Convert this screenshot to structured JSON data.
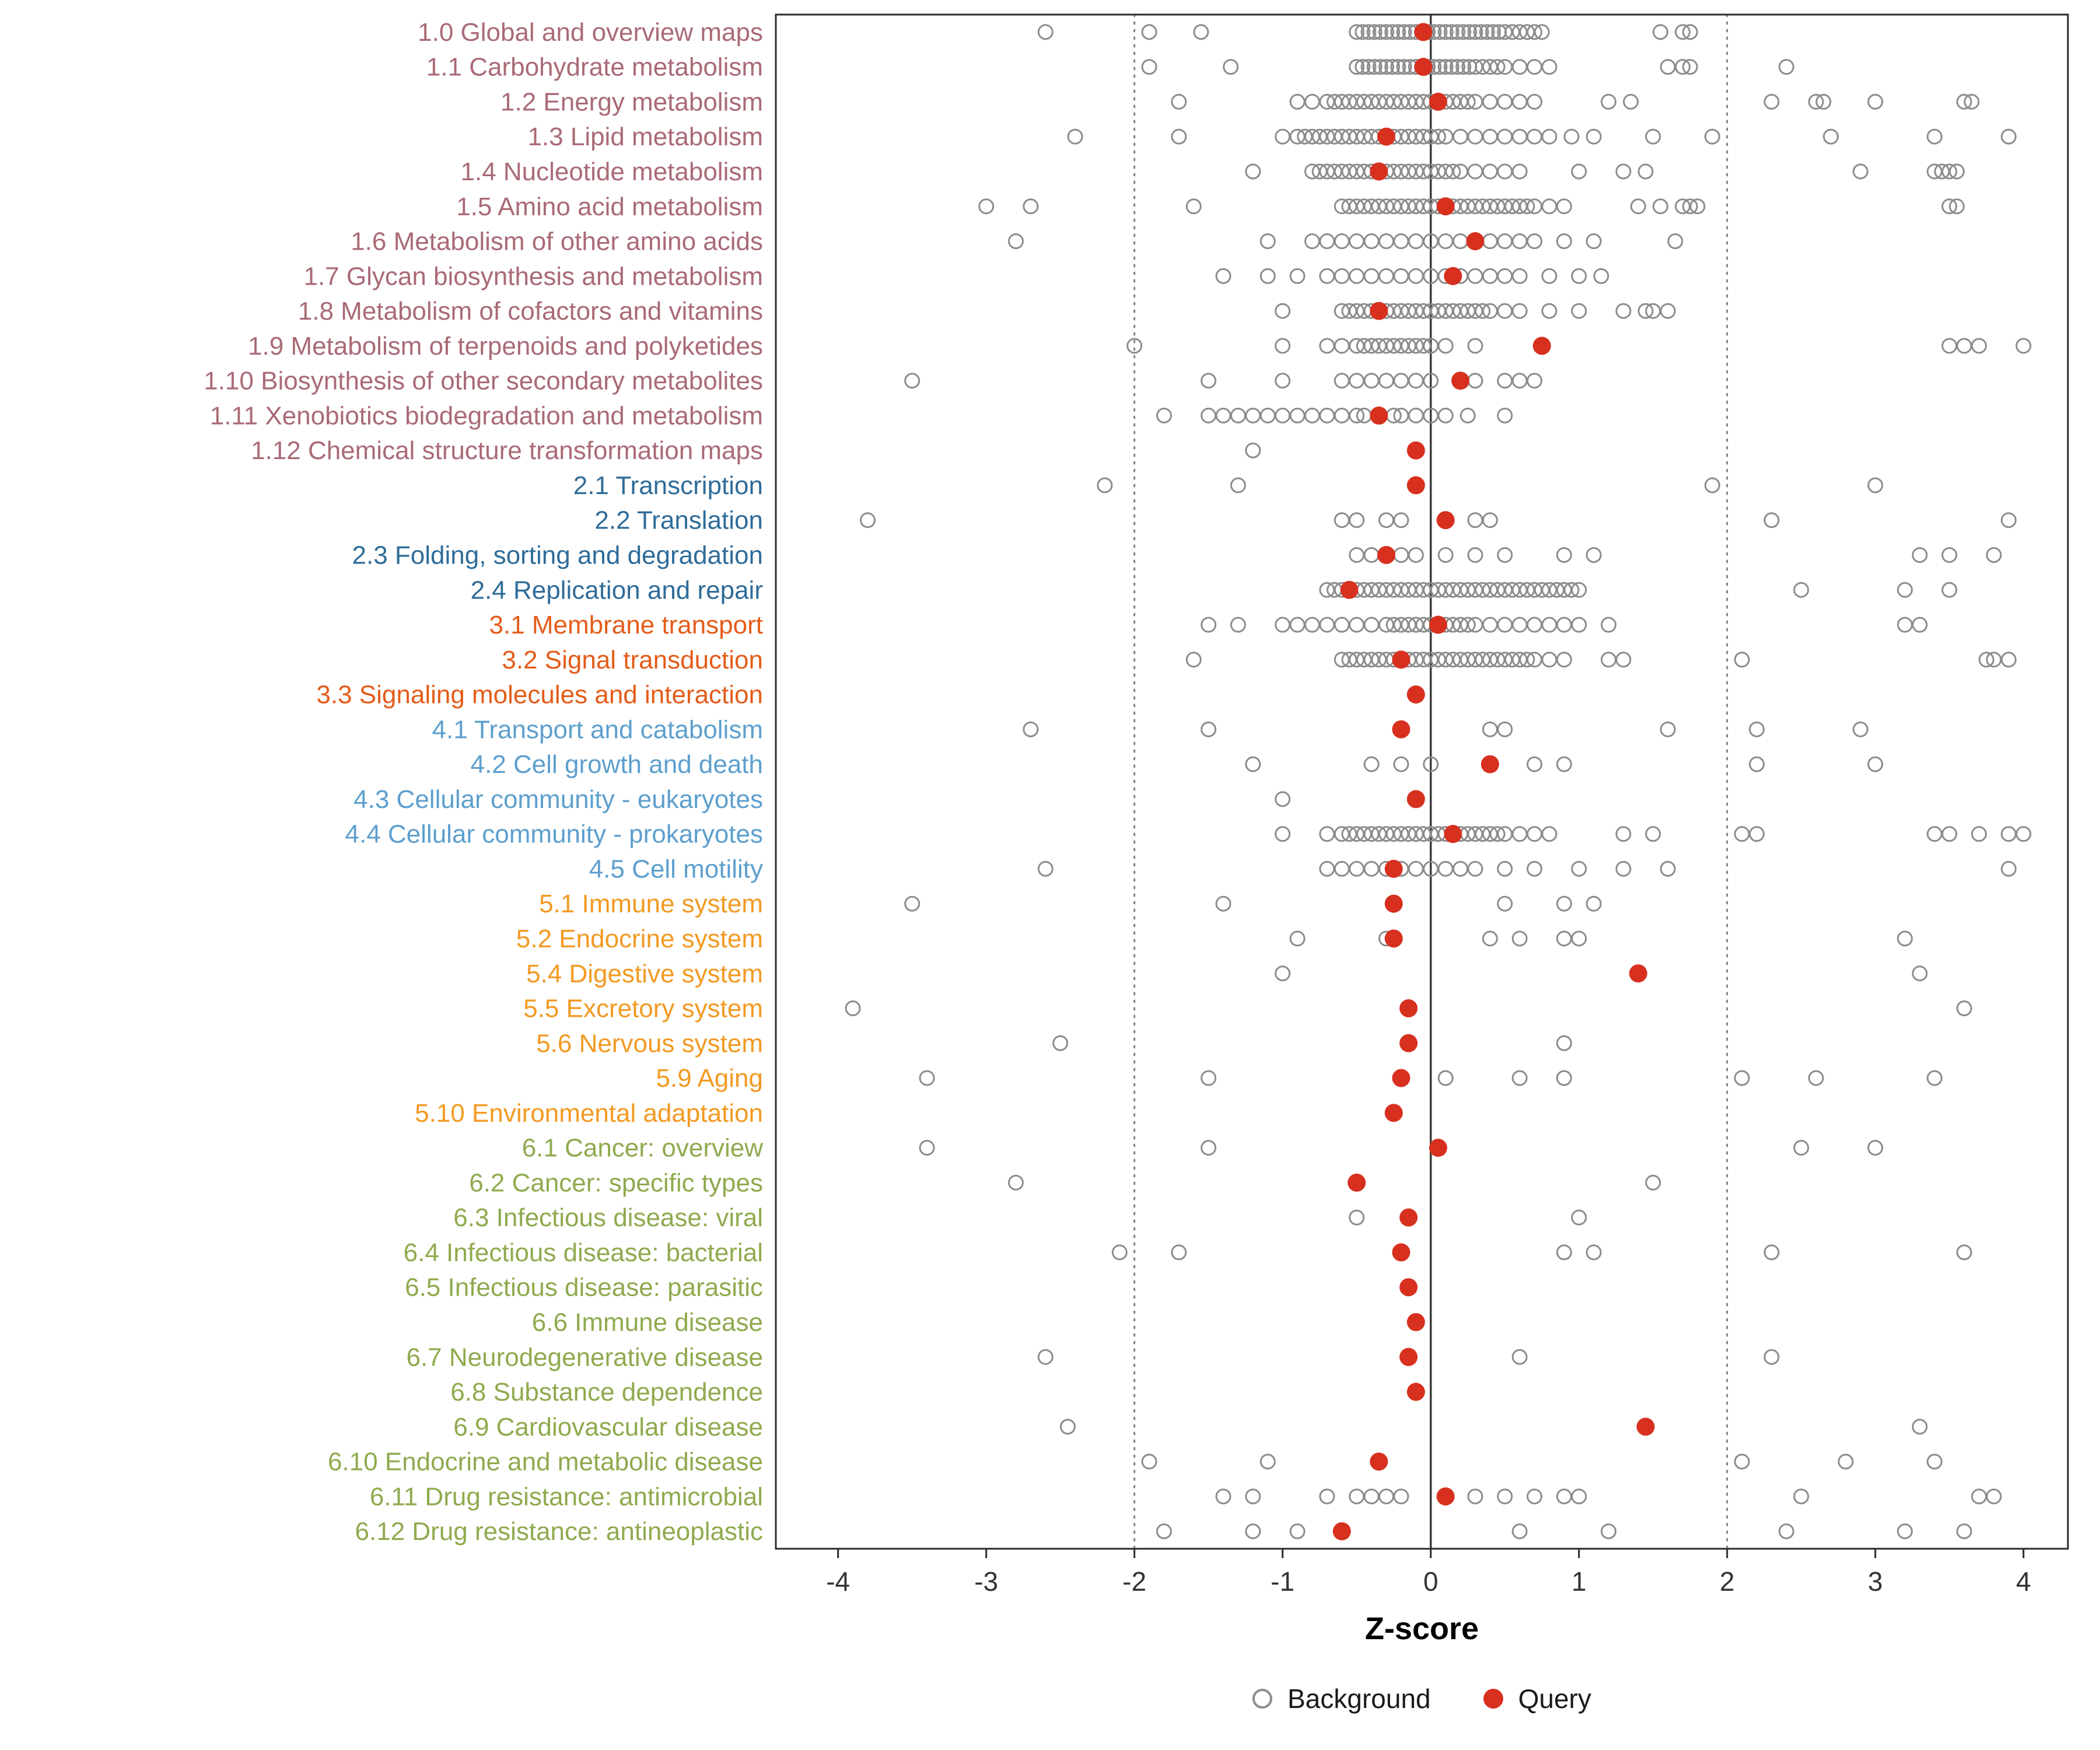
{
  "colors": {
    "query": "#D7301F",
    "background_stroke": "#8C8C8C",
    "zero_line": "#3C3C3C",
    "ref_line": "#808080",
    "panel_border": "#2B2B2B",
    "tick_text": "#333333",
    "axis_title": "#000000",
    "groups": {
      "metabolism": "#A96A76",
      "genetic_information_processing": "#2F6C99",
      "environmental_information_processing": "#E45C1A",
      "cellular_processes": "#5D9FCE",
      "organismal_systems": "#F29A23",
      "human_diseases": "#8FAA4E"
    }
  },
  "chart_data": {
    "type": "scatter",
    "title": "",
    "xlabel": "Z-score",
    "ylabel": "",
    "xlim": [
      -4.42,
      4.3
    ],
    "xticks": [
      -4,
      -3,
      -2,
      -1,
      0,
      1,
      2,
      3,
      4
    ],
    "grid": false,
    "ref_lines": {
      "solid": [
        0
      ],
      "dotted": [
        -2,
        2
      ]
    },
    "legend": {
      "background_label": "Background",
      "query_label": "Query",
      "position": "bottom"
    },
    "series_meaning": "Each row shows gray open 'Background' z-scores and one red filled 'Query' z-score per KEGG pathway category",
    "rows": [
      {
        "label": "1.0 Global and overview maps",
        "group": "metabolism",
        "query": -0.05,
        "background": [
          -2.6,
          -1.9,
          -1.55,
          -0.5,
          -0.46,
          -0.42,
          -0.38,
          -0.34,
          -0.3,
          -0.26,
          -0.22,
          -0.18,
          -0.14,
          -0.1,
          -0.06,
          -0.02,
          0.02,
          0.06,
          0.1,
          0.14,
          0.18,
          0.22,
          0.26,
          0.3,
          0.34,
          0.38,
          0.42,
          0.46,
          0.5,
          0.55,
          0.6,
          0.65,
          0.7,
          0.75,
          1.55,
          1.7,
          1.75
        ]
      },
      {
        "label": "1.1 Carbohydrate metabolism",
        "group": "metabolism",
        "query": -0.05,
        "background": [
          -1.9,
          -1.35,
          -0.5,
          -0.46,
          -0.42,
          -0.38,
          -0.34,
          -0.3,
          -0.26,
          -0.22,
          -0.18,
          -0.14,
          -0.1,
          -0.06,
          -0.02,
          0.02,
          0.06,
          0.1,
          0.14,
          0.18,
          0.22,
          0.26,
          0.3,
          0.35,
          0.4,
          0.45,
          0.5,
          0.6,
          0.7,
          0.8,
          1.6,
          1.7,
          1.75,
          2.4
        ]
      },
      {
        "label": "1.2 Energy metabolism",
        "group": "metabolism",
        "query": 0.05,
        "background": [
          -1.7,
          -0.9,
          -0.8,
          -0.7,
          -0.65,
          -0.6,
          -0.55,
          -0.5,
          -0.45,
          -0.4,
          -0.35,
          -0.3,
          -0.25,
          -0.2,
          -0.15,
          -0.1,
          -0.05,
          0,
          0.05,
          0.1,
          0.15,
          0.2,
          0.25,
          0.3,
          0.4,
          0.5,
          0.6,
          0.7,
          1.2,
          1.35,
          2.3,
          2.6,
          2.65,
          3.0,
          3.6,
          3.65
        ]
      },
      {
        "label": "1.3 Lipid metabolism",
        "group": "metabolism",
        "query": -0.3,
        "background": [
          -2.4,
          -1.7,
          -1.0,
          -0.9,
          -0.85,
          -0.8,
          -0.75,
          -0.7,
          -0.65,
          -0.6,
          -0.55,
          -0.5,
          -0.45,
          -0.4,
          -0.35,
          -0.25,
          -0.2,
          -0.15,
          -0.1,
          -0.05,
          0,
          0.05,
          0.1,
          0.2,
          0.3,
          0.4,
          0.5,
          0.6,
          0.7,
          0.8,
          0.95,
          1.1,
          1.5,
          1.9,
          2.7,
          3.4,
          3.9
        ]
      },
      {
        "label": "1.4 Nucleotide metabolism",
        "group": "metabolism",
        "query": -0.35,
        "background": [
          -1.2,
          -0.8,
          -0.75,
          -0.7,
          -0.65,
          -0.6,
          -0.55,
          -0.5,
          -0.45,
          -0.4,
          -0.3,
          -0.25,
          -0.2,
          -0.15,
          -0.1,
          -0.05,
          0,
          0.05,
          0.1,
          0.15,
          0.2,
          0.3,
          0.4,
          0.5,
          0.6,
          1.0,
          1.3,
          1.45,
          2.9,
          3.4,
          3.45,
          3.5,
          3.55
        ]
      },
      {
        "label": "1.5 Amino acid metabolism",
        "group": "metabolism",
        "query": 0.1,
        "background": [
          -3.0,
          -2.7,
          -1.6,
          -0.6,
          -0.55,
          -0.5,
          -0.45,
          -0.4,
          -0.35,
          -0.3,
          -0.25,
          -0.2,
          -0.15,
          -0.1,
          -0.05,
          0,
          0.05,
          0.15,
          0.2,
          0.25,
          0.3,
          0.35,
          0.4,
          0.45,
          0.5,
          0.55,
          0.6,
          0.65,
          0.7,
          0.8,
          0.9,
          1.4,
          1.55,
          1.7,
          1.75,
          1.8,
          3.5,
          3.55
        ]
      },
      {
        "label": "1.6 Metabolism of other amino acids",
        "group": "metabolism",
        "query": 0.3,
        "background": [
          -2.8,
          -1.1,
          -0.8,
          -0.7,
          -0.6,
          -0.5,
          -0.4,
          -0.3,
          -0.2,
          -0.1,
          0,
          0.1,
          0.2,
          0.4,
          0.5,
          0.6,
          0.7,
          0.9,
          1.1,
          1.65
        ]
      },
      {
        "label": "1.7 Glycan biosynthesis and metabolism",
        "group": "metabolism",
        "query": 0.15,
        "background": [
          -1.4,
          -1.1,
          -0.9,
          -0.7,
          -0.6,
          -0.5,
          -0.4,
          -0.3,
          -0.2,
          -0.1,
          0,
          0.1,
          0.2,
          0.3,
          0.4,
          0.5,
          0.6,
          0.8,
          1.0,
          1.15
        ]
      },
      {
        "label": "1.8 Metabolism of cofactors and vitamins",
        "group": "metabolism",
        "query": -0.35,
        "background": [
          -1.0,
          -0.6,
          -0.55,
          -0.5,
          -0.45,
          -0.4,
          -0.3,
          -0.25,
          -0.2,
          -0.15,
          -0.1,
          -0.05,
          0,
          0.05,
          0.1,
          0.15,
          0.2,
          0.25,
          0.3,
          0.35,
          0.4,
          0.5,
          0.6,
          0.8,
          1.0,
          1.3,
          1.45,
          1.5,
          1.6
        ]
      },
      {
        "label": "1.9 Metabolism of terpenoids and polyketides",
        "group": "metabolism",
        "query": 0.75,
        "background": [
          -2.0,
          -1.0,
          -0.7,
          -0.6,
          -0.5,
          -0.45,
          -0.4,
          -0.35,
          -0.3,
          -0.25,
          -0.2,
          -0.15,
          -0.1,
          -0.05,
          0,
          0.1,
          0.3,
          3.5,
          3.6,
          3.7,
          4.0
        ]
      },
      {
        "label": "1.10 Biosynthesis of other secondary metabolites",
        "group": "metabolism",
        "query": 0.2,
        "background": [
          -3.5,
          -1.5,
          -1.0,
          -0.6,
          -0.5,
          -0.4,
          -0.3,
          -0.2,
          -0.1,
          0,
          0.3,
          0.5,
          0.6,
          0.7
        ]
      },
      {
        "label": "1.11 Xenobiotics biodegradation and metabolism",
        "group": "metabolism",
        "query": -0.35,
        "background": [
          -1.8,
          -1.5,
          -1.4,
          -1.3,
          -1.2,
          -1.1,
          -1.0,
          -0.9,
          -0.8,
          -0.7,
          -0.6,
          -0.5,
          -0.45,
          -0.25,
          -0.2,
          -0.1,
          0,
          0.1,
          0.25,
          0.5
        ]
      },
      {
        "label": "1.12 Chemical structure transformation maps",
        "group": "metabolism",
        "query": -0.1,
        "background": [
          -1.2
        ]
      },
      {
        "label": "2.1 Transcription",
        "group": "genetic_information_processing",
        "query": -0.1,
        "background": [
          -2.2,
          -1.3,
          1.9,
          3.0
        ]
      },
      {
        "label": "2.2 Translation",
        "group": "genetic_information_processing",
        "query": 0.1,
        "background": [
          -3.8,
          -0.6,
          -0.5,
          -0.3,
          -0.2,
          0.3,
          0.4,
          2.3,
          3.9
        ]
      },
      {
        "label": "2.3 Folding, sorting and degradation",
        "group": "genetic_information_processing",
        "query": -0.3,
        "background": [
          -0.5,
          -0.4,
          -0.2,
          -0.1,
          0.1,
          0.3,
          0.5,
          0.9,
          1.1,
          3.3,
          3.5,
          3.8
        ]
      },
      {
        "label": "2.4 Replication and repair",
        "group": "genetic_information_processing",
        "query": -0.55,
        "background": [
          -0.7,
          -0.65,
          -0.6,
          -0.5,
          -0.45,
          -0.4,
          -0.35,
          -0.3,
          -0.25,
          -0.2,
          -0.15,
          -0.1,
          -0.05,
          0,
          0.05,
          0.1,
          0.15,
          0.2,
          0.25,
          0.3,
          0.35,
          0.4,
          0.45,
          0.5,
          0.55,
          0.6,
          0.65,
          0.7,
          0.75,
          0.8,
          0.85,
          0.9,
          0.95,
          1.0,
          2.5,
          3.2,
          3.5
        ]
      },
      {
        "label": "3.1 Membrane transport",
        "group": "environmental_information_processing",
        "query": 0.05,
        "background": [
          -1.5,
          -1.3,
          -1.0,
          -0.9,
          -0.8,
          -0.7,
          -0.6,
          -0.5,
          -0.4,
          -0.3,
          -0.25,
          -0.2,
          -0.15,
          -0.1,
          -0.05,
          0,
          0.1,
          0.15,
          0.2,
          0.25,
          0.3,
          0.4,
          0.5,
          0.6,
          0.7,
          0.8,
          0.9,
          1.0,
          1.2,
          3.2,
          3.3
        ]
      },
      {
        "label": "3.2 Signal transduction",
        "group": "environmental_information_processing",
        "query": -0.2,
        "background": [
          -1.6,
          -0.6,
          -0.55,
          -0.5,
          -0.45,
          -0.4,
          -0.35,
          -0.3,
          -0.25,
          -0.15,
          -0.1,
          -0.05,
          0,
          0.05,
          0.1,
          0.15,
          0.2,
          0.25,
          0.3,
          0.35,
          0.4,
          0.45,
          0.5,
          0.55,
          0.6,
          0.65,
          0.7,
          0.8,
          0.9,
          1.2,
          1.3,
          2.1,
          3.75,
          3.8,
          3.9
        ]
      },
      {
        "label": "3.3 Signaling molecules and interaction",
        "group": "environmental_information_processing",
        "query": -0.1,
        "background": []
      },
      {
        "label": "4.1 Transport and catabolism",
        "group": "cellular_processes",
        "query": -0.2,
        "background": [
          -2.7,
          -1.5,
          0.4,
          0.5,
          1.6,
          2.2,
          2.9
        ]
      },
      {
        "label": "4.2 Cell growth and death",
        "group": "cellular_processes",
        "query": 0.4,
        "background": [
          -1.2,
          -0.4,
          -0.2,
          0,
          0.7,
          0.9,
          2.2,
          3.0
        ]
      },
      {
        "label": "4.3 Cellular community - eukaryotes",
        "group": "cellular_processes",
        "query": -0.1,
        "background": [
          -1.0
        ]
      },
      {
        "label": "4.4 Cellular community - prokaryotes",
        "group": "cellular_processes",
        "query": 0.15,
        "background": [
          -1.0,
          -0.7,
          -0.6,
          -0.55,
          -0.5,
          -0.45,
          -0.4,
          -0.35,
          -0.3,
          -0.25,
          -0.2,
          -0.15,
          -0.1,
          -0.05,
          0,
          0.05,
          0.1,
          0.2,
          0.25,
          0.3,
          0.35,
          0.4,
          0.45,
          0.5,
          0.6,
          0.7,
          0.8,
          1.3,
          1.5,
          2.1,
          2.2,
          3.4,
          3.5,
          3.7,
          3.9,
          4.0
        ]
      },
      {
        "label": "4.5 Cell motility",
        "group": "cellular_processes",
        "query": -0.25,
        "background": [
          -2.6,
          -0.7,
          -0.6,
          -0.5,
          -0.4,
          -0.3,
          -0.2,
          -0.1,
          0,
          0.1,
          0.2,
          0.3,
          0.5,
          0.7,
          1.0,
          1.3,
          1.6,
          3.9
        ]
      },
      {
        "label": "5.1 Immune system",
        "group": "organismal_systems",
        "query": -0.25,
        "background": [
          -3.5,
          -1.4,
          0.5,
          0.9,
          1.1
        ]
      },
      {
        "label": "5.2 Endocrine system",
        "group": "organismal_systems",
        "query": -0.25,
        "background": [
          -0.9,
          -0.3,
          0.4,
          0.6,
          0.9,
          1.0,
          3.2
        ]
      },
      {
        "label": "5.4 Digestive system",
        "group": "organismal_systems",
        "query": 1.4,
        "background": [
          -1.0,
          3.3
        ]
      },
      {
        "label": "5.5 Excretory system",
        "group": "organismal_systems",
        "query": -0.15,
        "background": [
          -3.9,
          3.6
        ]
      },
      {
        "label": "5.6 Nervous system",
        "group": "organismal_systems",
        "query": -0.15,
        "background": [
          -2.5,
          0.9
        ]
      },
      {
        "label": "5.9 Aging",
        "group": "organismal_systems",
        "query": -0.2,
        "background": [
          -3.4,
          -1.5,
          -0.2,
          0.1,
          0.6,
          0.9,
          2.1,
          2.6,
          3.4
        ]
      },
      {
        "label": "5.10 Environmental adaptation",
        "group": "organismal_systems",
        "query": -0.25,
        "background": []
      },
      {
        "label": "6.1 Cancer: overview",
        "group": "human_diseases",
        "query": 0.05,
        "background": [
          -3.4,
          -1.5,
          2.5,
          3.0
        ]
      },
      {
        "label": "6.2 Cancer: specific types",
        "group": "human_diseases",
        "query": -0.5,
        "background": [
          -2.8,
          1.5
        ]
      },
      {
        "label": "6.3 Infectious disease: viral",
        "group": "human_diseases",
        "query": -0.15,
        "background": [
          -0.5,
          1.0
        ]
      },
      {
        "label": "6.4 Infectious disease: bacterial",
        "group": "human_diseases",
        "query": -0.2,
        "background": [
          -2.1,
          -1.7,
          0.9,
          1.1,
          2.3,
          3.6
        ]
      },
      {
        "label": "6.5 Infectious disease: parasitic",
        "group": "human_diseases",
        "query": -0.15,
        "background": []
      },
      {
        "label": "6.6 Immune disease",
        "group": "human_diseases",
        "query": -0.1,
        "background": []
      },
      {
        "label": "6.7 Neurodegenerative disease",
        "group": "human_diseases",
        "query": -0.15,
        "background": [
          -2.6,
          0.6,
          2.3
        ]
      },
      {
        "label": "6.8 Substance dependence",
        "group": "human_diseases",
        "query": -0.1,
        "background": []
      },
      {
        "label": "6.9 Cardiovascular disease",
        "group": "human_diseases",
        "query": 1.45,
        "background": [
          -2.45,
          3.3
        ]
      },
      {
        "label": "6.10 Endocrine and metabolic disease",
        "group": "human_diseases",
        "query": -0.35,
        "background": [
          -1.9,
          -1.1,
          2.1,
          2.8,
          3.4
        ]
      },
      {
        "label": "6.11 Drug resistance: antimicrobial",
        "group": "human_diseases",
        "query": 0.1,
        "background": [
          -1.4,
          -1.2,
          -0.7,
          -0.5,
          -0.4,
          -0.3,
          -0.2,
          0.3,
          0.5,
          0.7,
          0.9,
          1.0,
          2.5,
          3.7,
          3.8
        ]
      },
      {
        "label": "6.12 Drug resistance: antineoplastic",
        "group": "human_diseases",
        "query": -0.6,
        "background": [
          -1.8,
          -1.2,
          -0.9,
          0.6,
          1.2,
          2.4,
          3.2,
          3.6
        ]
      }
    ]
  }
}
